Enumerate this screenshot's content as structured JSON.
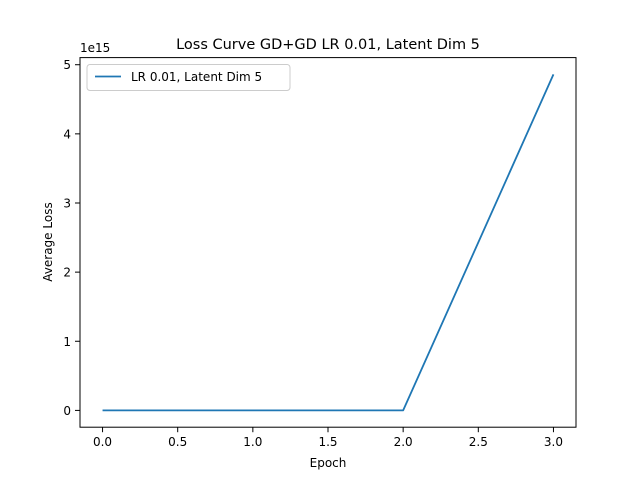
{
  "chart_data": {
    "type": "line",
    "title": "Loss Curve GD+GD LR 0.01, Latent Dim 5",
    "xlabel": "Epoch",
    "ylabel": "Average Loss",
    "y_offset_label": "1e15",
    "x_ticks": [
      "0.0",
      "0.5",
      "1.0",
      "1.5",
      "2.0",
      "2.5",
      "3.0"
    ],
    "y_ticks": [
      "0",
      "1",
      "2",
      "3",
      "4",
      "5"
    ],
    "y_ticks_values": [
      0,
      1,
      2,
      3,
      4,
      5
    ],
    "x_ticks_values": [
      0,
      0.5,
      1,
      1.5,
      2,
      2.5,
      3
    ],
    "xlim": [
      -0.15,
      3.15
    ],
    "ylim": [
      -0.243,
      5.103
    ],
    "y_unit_scale": 1000000000000000.0,
    "grid": false,
    "legend_position": "upper-left",
    "series": [
      {
        "name": "LR 0.01, Latent Dim 5",
        "color": "#1f77b4",
        "x": [
          0,
          1,
          2,
          3
        ],
        "y": [
          0,
          0,
          0,
          4.86
        ]
      }
    ]
  }
}
